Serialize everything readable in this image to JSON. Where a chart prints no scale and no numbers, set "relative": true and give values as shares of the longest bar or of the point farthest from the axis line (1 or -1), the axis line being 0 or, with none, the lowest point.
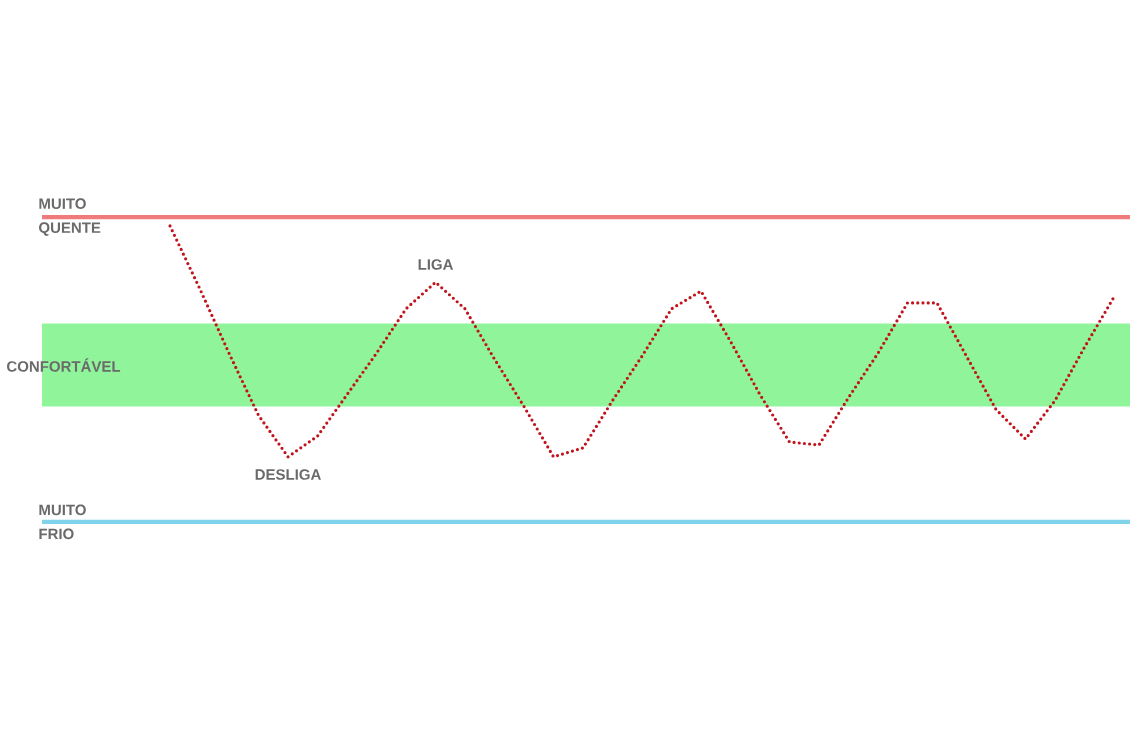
{
  "chart_data": {
    "type": "line",
    "relative": true,
    "line_style": "dotted",
    "categories": [
      null,
      null,
      null,
      null,
      null,
      null,
      null,
      null,
      null,
      null,
      null,
      null,
      null,
      null,
      null,
      null,
      null,
      null,
      null,
      null,
      null,
      null,
      null,
      null,
      null,
      null,
      null,
      null,
      null,
      null,
      null,
      null,
      null
    ],
    "series": [
      {
        "color": "#c0141c",
        "values": [
          1.0,
          0.79,
          0.57,
          0.36,
          0.22,
          0.29,
          0.43,
          0.57,
          0.72,
          0.81,
          0.72,
          0.55,
          0.39,
          0.22,
          0.25,
          0.41,
          0.56,
          0.72,
          0.78,
          0.61,
          0.43,
          0.27,
          0.26,
          0.42,
          0.57,
          0.74,
          0.74,
          0.56,
          0.38,
          0.28,
          0.41,
          0.59,
          0.76
        ]
      }
    ],
    "ref_lines": [
      {
        "axis": "y",
        "value": 1.03,
        "label": "MUITO QUENTE",
        "color": "#f07b7b"
      },
      {
        "axis": "y",
        "value": 0,
        "label": "MUITO FRIO",
        "color": "#7fd3ea"
      }
    ],
    "bands": [
      {
        "axis": "y",
        "from": 0.39,
        "to": 0.67,
        "label": "CONFORTÁVEL",
        "color": "#90f59a"
      }
    ],
    "annotations": [
      "LIGA",
      "DESLIGA"
    ]
  }
}
